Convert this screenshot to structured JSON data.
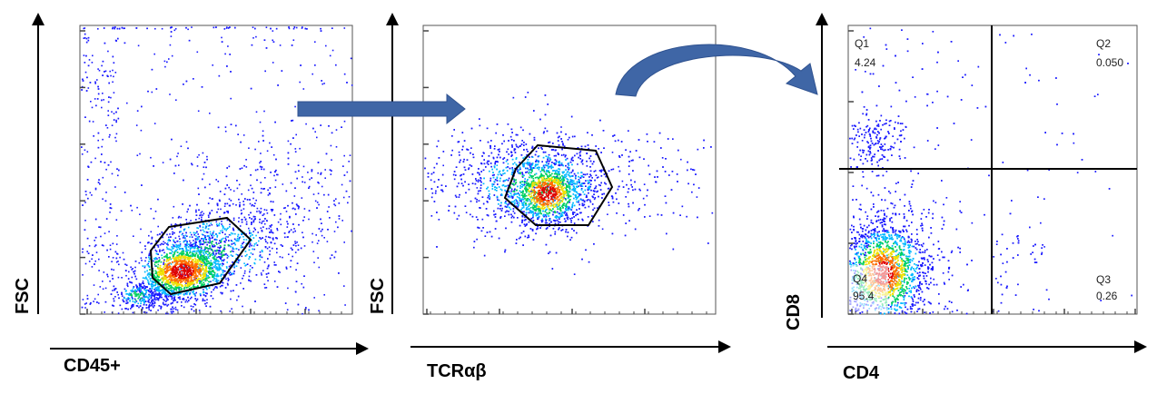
{
  "colors": {
    "axis": "#000000",
    "gate": "#000000",
    "flow_arrow": "#3f66a6",
    "density_scale": [
      "#1a1aff",
      "#00b8ff",
      "#00d060",
      "#f0e000",
      "#ff7000",
      "#e00000"
    ]
  },
  "chart_data": [
    {
      "type": "scatter",
      "plot": "flow-cytometry-dot-plot",
      "xlabel": "CD45+",
      "ylabel": "FSC",
      "gate": "polygon",
      "population_center": [
        0.37,
        0.15
      ],
      "density_color": "pseudocolor"
    },
    {
      "type": "scatter",
      "plot": "flow-cytometry-dot-plot",
      "xlabel": "TCRαβ",
      "ylabel": "FSC",
      "gate": "hexagon",
      "population_center": [
        0.42,
        0.43
      ],
      "density_color": "pseudocolor"
    },
    {
      "type": "scatter",
      "plot": "flow-cytometry-quadrant-plot",
      "xlabel": "CD4",
      "ylabel": "CD8",
      "quadrants": [
        {
          "label": "Q1",
          "value": "4.24"
        },
        {
          "label": "Q2",
          "value": "0.050"
        },
        {
          "label": "Q3",
          "value": "0.26"
        },
        {
          "label": "Q4",
          "value": "95.4"
        }
      ],
      "density_color": "pseudocolor"
    }
  ]
}
